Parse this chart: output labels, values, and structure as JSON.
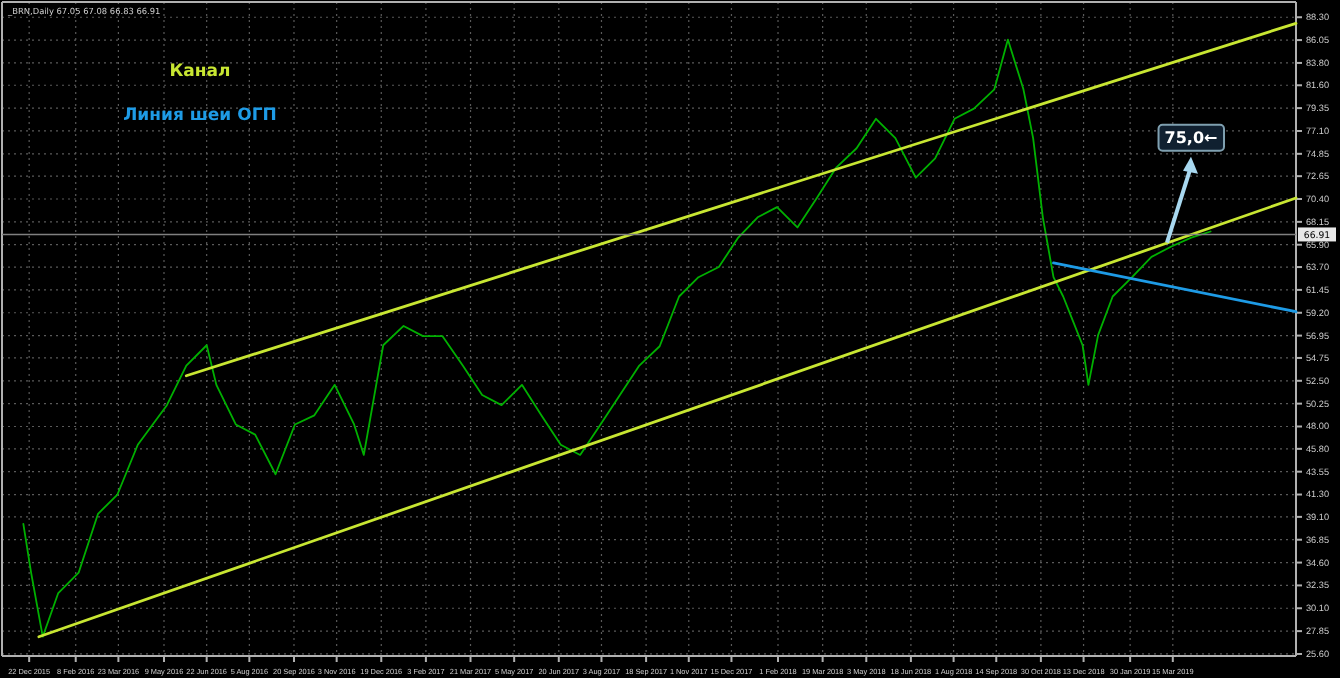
{
  "chart_data": {
    "type": "line",
    "title": "_BRN,Daily 67.05 67.08 66.83 66.91",
    "grid": true,
    "xlim": [
      "2015-11-24",
      "2019-07-20"
    ],
    "ylim": [
      25.4,
      89.8
    ],
    "xticks": [
      {
        "value": "2015-12-22",
        "label": "22 Dec 2015"
      },
      {
        "value": "2016-02-08",
        "label": "8 Feb 2016"
      },
      {
        "value": "2016-03-23",
        "label": "23 Mar 2016"
      },
      {
        "value": "2016-05-09",
        "label": "9 May 2016"
      },
      {
        "value": "2016-06-22",
        "label": "22 Jun 2016"
      },
      {
        "value": "2016-08-05",
        "label": "5 Aug 2016"
      },
      {
        "value": "2016-09-20",
        "label": "20 Sep 2016"
      },
      {
        "value": "2016-11-03",
        "label": "3 Nov 2016"
      },
      {
        "value": "2016-12-19",
        "label": "19 Dec 2016"
      },
      {
        "value": "2017-02-03",
        "label": "3 Feb 2017"
      },
      {
        "value": "2017-03-21",
        "label": "21 Mar 2017"
      },
      {
        "value": "2017-05-05",
        "label": "5 May 2017"
      },
      {
        "value": "2017-06-20",
        "label": "20 Jun 2017"
      },
      {
        "value": "2017-08-03",
        "label": "3 Aug 2017"
      },
      {
        "value": "2017-09-18",
        "label": "18 Sep 2017"
      },
      {
        "value": "2017-11-01",
        "label": "1 Nov 2017"
      },
      {
        "value": "2017-12-15",
        "label": "15 Dec 2017"
      },
      {
        "value": "2018-02-01",
        "label": "1 Feb 2018"
      },
      {
        "value": "2018-03-19",
        "label": "19 Mar 2018"
      },
      {
        "value": "2018-05-03",
        "label": "3 May 2018"
      },
      {
        "value": "2018-06-18",
        "label": "18 Jun 2018"
      },
      {
        "value": "2018-08-01",
        "label": "1 Aug 2018"
      },
      {
        "value": "2018-09-14",
        "label": "14 Sep 2018"
      },
      {
        "value": "2018-10-30",
        "label": "30 Oct 2018"
      },
      {
        "value": "2018-12-13",
        "label": "13 Dec 2018"
      },
      {
        "value": "2019-01-30",
        "label": "30 Jan 2019"
      },
      {
        "value": "2019-03-15",
        "label": "15 Mar 2019"
      }
    ],
    "yticks": [
      {
        "value": 25.6,
        "label": "25.60"
      },
      {
        "value": 27.85,
        "label": "27.85"
      },
      {
        "value": 30.1,
        "label": "30.10"
      },
      {
        "value": 32.35,
        "label": "32.35"
      },
      {
        "value": 34.6,
        "label": "34.60"
      },
      {
        "value": 36.85,
        "label": "36.85"
      },
      {
        "value": 39.1,
        "label": "39.10"
      },
      {
        "value": 41.3,
        "label": "41.30"
      },
      {
        "value": 43.55,
        "label": "43.55"
      },
      {
        "value": 45.8,
        "label": "45.80"
      },
      {
        "value": 48.0,
        "label": "48.00"
      },
      {
        "value": 50.25,
        "label": "50.25"
      },
      {
        "value": 52.5,
        "label": "52.50"
      },
      {
        "value": 54.75,
        "label": "54.75"
      },
      {
        "value": 56.95,
        "label": "56.95"
      },
      {
        "value": 59.2,
        "label": "59.20"
      },
      {
        "value": 61.45,
        "label": "61.45"
      },
      {
        "value": 63.7,
        "label": "63.70"
      },
      {
        "value": 65.9,
        "label": "65.90"
      },
      {
        "value": 68.15,
        "label": "68.15"
      },
      {
        "value": 70.4,
        "label": "70.40"
      },
      {
        "value": 72.65,
        "label": "72.65"
      },
      {
        "value": 74.85,
        "label": "74.85"
      },
      {
        "value": 77.1,
        "label": "77.10"
      },
      {
        "value": 79.35,
        "label": "79.35"
      },
      {
        "value": 81.6,
        "label": "81.60"
      },
      {
        "value": 83.8,
        "label": "83.80"
      },
      {
        "value": 86.05,
        "label": "86.05"
      },
      {
        "value": 88.3,
        "label": "88.30"
      }
    ],
    "ref_lines": [
      {
        "axis": "y",
        "value": 66.91,
        "label": "66.91",
        "color": "#808080"
      }
    ],
    "annotations": [
      {
        "text": "75,0←",
        "x": "2019-03-09",
        "y": 66.1
      }
    ],
    "series": [
      {
        "color": "#00b000",
        "x": [
          "2015-12-16",
          "2015-12-24",
          "2016-01-05",
          "2016-01-21",
          "2016-02-11",
          "2016-03-02",
          "2016-03-22",
          "2016-04-12",
          "2016-05-12",
          "2016-06-01",
          "2016-06-22",
          "2016-07-02",
          "2016-07-22",
          "2016-08-11",
          "2016-09-01",
          "2016-09-21",
          "2016-10-11",
          "2016-11-01",
          "2016-11-21",
          "2016-12-01",
          "2016-12-21",
          "2017-01-11",
          "2017-01-31",
          "2017-02-20",
          "2017-03-13",
          "2017-04-02",
          "2017-04-22",
          "2017-05-13",
          "2017-06-02",
          "2017-06-22",
          "2017-07-12",
          "2017-08-02",
          "2017-08-22",
          "2017-09-11",
          "2017-10-02",
          "2017-10-22",
          "2017-11-11",
          "2017-12-02",
          "2017-12-22",
          "2018-01-11",
          "2018-01-31",
          "2018-02-21",
          "2018-03-13",
          "2018-04-02",
          "2018-04-23",
          "2018-05-13",
          "2018-06-02",
          "2018-06-23",
          "2018-07-13",
          "2018-08-02",
          "2018-08-22",
          "2018-09-12",
          "2018-09-26",
          "2018-10-12",
          "2018-10-22",
          "2018-11-01",
          "2018-11-12",
          "2018-11-22",
          "2018-12-02",
          "2018-12-12",
          "2018-12-18",
          "2018-12-28",
          "2019-01-12",
          "2019-02-01",
          "2019-02-21",
          "2019-03-13",
          "2019-04-03",
          "2019-04-23"
        ],
        "values": [
          38.4,
          33.6,
          27.3,
          31.6,
          33.6,
          39.4,
          41.3,
          46.2,
          50.1,
          54.0,
          56.0,
          52.1,
          48.2,
          47.2,
          43.3,
          48.2,
          49.1,
          52.1,
          48.2,
          45.2,
          56.0,
          57.9,
          56.9,
          56.9,
          54.0,
          51.1,
          50.1,
          52.1,
          49.1,
          46.2,
          45.2,
          48.2,
          51.1,
          54.0,
          55.9,
          60.8,
          62.7,
          63.7,
          66.6,
          68.6,
          69.6,
          67.6,
          70.5,
          73.5,
          75.4,
          78.3,
          76.4,
          72.5,
          74.4,
          78.3,
          79.3,
          81.2,
          86.1,
          81.2,
          76.4,
          68.6,
          62.7,
          60.8,
          58.4,
          56.0,
          52.1,
          57.0,
          60.8,
          62.7,
          64.7,
          65.7,
          66.6,
          67.2
        ]
      },
      {
        "name": "Канал",
        "color": "#c8e632",
        "x": [
          "2016-06-01",
          "2019-07-20"
        ],
        "values": [
          53.0,
          87.7
        ]
      },
      {
        "color": "#c8e632",
        "x": [
          "2016-01-01",
          "2019-07-20"
        ],
        "values": [
          27.3,
          70.5
        ]
      },
      {
        "name": "Линия шеи ОГП",
        "color": "#1e9be6",
        "x": [
          "2018-11-12",
          "2019-07-20"
        ],
        "values": [
          64.1,
          59.3
        ]
      }
    ]
  }
}
